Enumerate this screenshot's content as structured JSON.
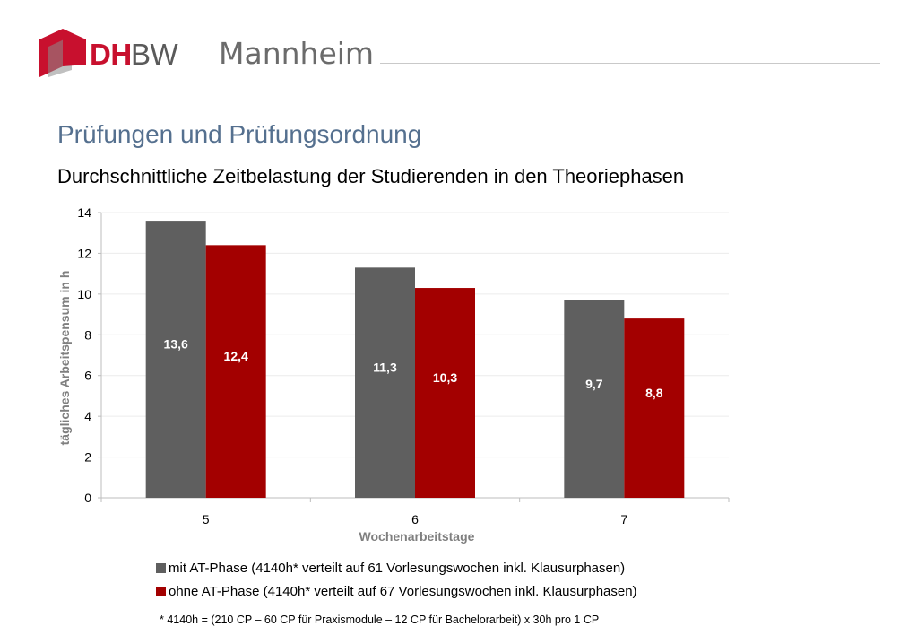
{
  "logo": {
    "brand_part1": "DH",
    "brand_part2": "BW",
    "location": "Mannheim"
  },
  "title": "Prüfungen und Prüfungsordnung",
  "subtitle": "Durchschnittliche Zeitbelastung der Studierenden in den Theoriephasen",
  "footnote": "* 4140h = (210 CP – 60 CP für Praxismodule – 12 CP für Bachelorarbeit) x 30h pro 1 CP",
  "colors": {
    "brand_red": "#c8102e",
    "series_gray": "#5f5f5f",
    "series_red": "#a30000",
    "title_blue": "#55708f"
  },
  "chart_data": {
    "type": "bar",
    "categories": [
      "5",
      "6",
      "7"
    ],
    "series": [
      {
        "name": "mit AT-Phase (4140h* verteilt auf 61 Vorlesungswochen inkl. Klausurphasen)",
        "values": [
          13.6,
          11.3,
          9.7
        ],
        "labels": [
          "13,6",
          "11,3",
          "9,7"
        ],
        "color": "#5f5f5f"
      },
      {
        "name": "ohne AT-Phase (4140h* verteilt auf 67 Vorlesungswochen inkl. Klausurphasen)",
        "values": [
          12.4,
          10.3,
          8.8
        ],
        "labels": [
          "12,4",
          "10,3",
          "8,8"
        ],
        "color": "#a30000"
      }
    ],
    "xlabel": "Wochenarbeitstage",
    "ylabel": "tägliches Arbeitspensum in h",
    "ylim": [
      0,
      14
    ],
    "yticks": [
      0,
      2,
      4,
      6,
      8,
      10,
      12,
      14
    ],
    "grid": true,
    "legend": "bottom"
  }
}
